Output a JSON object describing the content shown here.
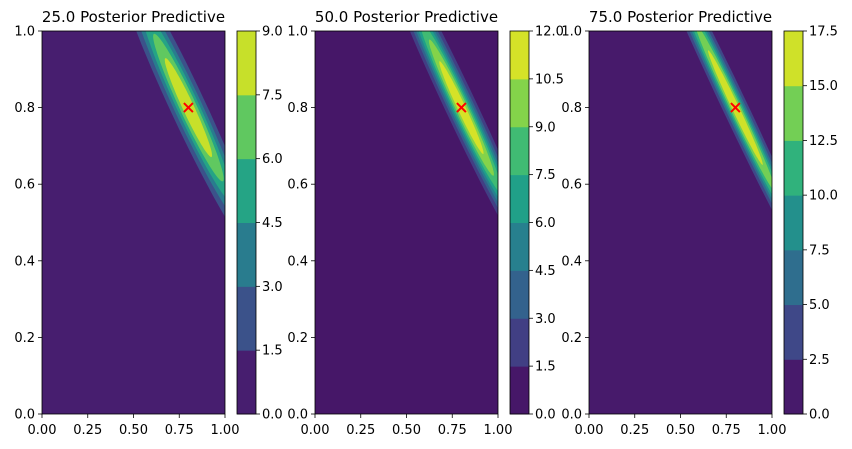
{
  "chart_data": [
    {
      "type": "contour",
      "title": "25.0 Posterior Predictive",
      "xlim": [
        0.0,
        1.0
      ],
      "ylim": [
        0.0,
        1.0
      ],
      "xticks": [
        "0.00",
        "0.25",
        "0.50",
        "0.75",
        "1.00"
      ],
      "yticks": [
        "0.0",
        "0.2",
        "0.4",
        "0.6",
        "0.8",
        "1.0"
      ],
      "colorbar_levels": [
        0.0,
        1.5,
        3.0,
        4.5,
        6.0,
        7.5,
        9.0
      ],
      "colorbar_ticks": [
        "0.0",
        "1.5",
        "3.0",
        "4.5",
        "6.0",
        "7.5",
        "9.0"
      ],
      "peak": 9.0,
      "marker": {
        "x": 0.8,
        "y": 0.8,
        "symbol": "x",
        "color": "#ff0000"
      }
    },
    {
      "type": "contour",
      "title": "50.0 Posterior Predictive",
      "xlim": [
        0.0,
        1.0
      ],
      "ylim": [
        0.0,
        1.0
      ],
      "xticks": [
        "0.00",
        "0.25",
        "0.50",
        "0.75",
        "1.00"
      ],
      "yticks": [
        "0.0",
        "0.2",
        "0.4",
        "0.6",
        "0.8",
        "1.0"
      ],
      "colorbar_levels": [
        0.0,
        1.5,
        3.0,
        4.5,
        6.0,
        7.5,
        9.0,
        10.5,
        12.0
      ],
      "colorbar_ticks": [
        "0.0",
        "1.5",
        "3.0",
        "4.5",
        "6.0",
        "7.5",
        "9.0",
        "10.5",
        "12.0"
      ],
      "peak": 12.0,
      "marker": {
        "x": 0.8,
        "y": 0.8,
        "symbol": "x",
        "color": "#ff0000"
      }
    },
    {
      "type": "contour",
      "title": "75.0 Posterior Predictive",
      "xlim": [
        0.0,
        1.0
      ],
      "ylim": [
        0.0,
        1.0
      ],
      "xticks": [
        "0.00",
        "0.25",
        "0.50",
        "0.75",
        "1.00"
      ],
      "yticks": [
        "0.0",
        "0.2",
        "0.4",
        "0.6",
        "0.8",
        "1.0"
      ],
      "colorbar_levels": [
        0.0,
        2.5,
        5.0,
        7.5,
        10.0,
        12.5,
        15.0,
        17.5
      ],
      "colorbar_ticks": [
        "0.0",
        "2.5",
        "5.0",
        "7.5",
        "10.0",
        "12.5",
        "15.0",
        "17.5"
      ],
      "peak": 17.5,
      "marker": {
        "x": 0.8,
        "y": 0.8,
        "symbol": "x",
        "color": "#ff0000"
      }
    }
  ]
}
